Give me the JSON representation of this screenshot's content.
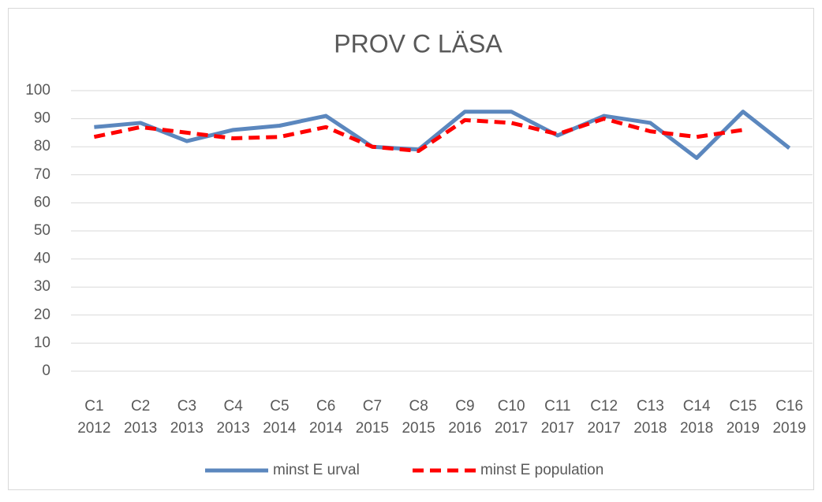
{
  "chart_data": {
    "type": "line",
    "title": "PROV C LÄSA",
    "categories": [
      [
        "C1",
        "2012"
      ],
      [
        "C2",
        "2013"
      ],
      [
        "C3",
        "2013"
      ],
      [
        "C4",
        "2013"
      ],
      [
        "C5",
        "2014"
      ],
      [
        "C6",
        "2014"
      ],
      [
        "C7",
        "2015"
      ],
      [
        "C8",
        "2015"
      ],
      [
        "C9",
        "2016"
      ],
      [
        "C10",
        "2017"
      ],
      [
        "C11",
        "2017"
      ],
      [
        "C12",
        "2017"
      ],
      [
        "C13",
        "2018"
      ],
      [
        "C14",
        "2018"
      ],
      [
        "C15",
        "2019"
      ],
      [
        "C16",
        "2019"
      ]
    ],
    "series": [
      {
        "name": "minst E urval",
        "color": "#5b87be",
        "dash": false,
        "values": [
          87,
          88.5,
          82,
          86,
          87.5,
          91,
          80,
          79,
          92.5,
          92.5,
          84,
          91,
          88.5,
          76,
          92.5,
          79.5
        ]
      },
      {
        "name": "minst E population",
        "color": "#ff0000",
        "dash": true,
        "values": [
          83.5,
          87,
          85,
          83,
          83.5,
          87,
          80,
          78.5,
          89.5,
          88.5,
          84.5,
          90,
          85.5,
          83.5,
          86,
          null
        ]
      }
    ],
    "ylim": [
      0,
      100
    ],
    "yticks": [
      0,
      10,
      20,
      30,
      40,
      50,
      60,
      70,
      80,
      90,
      100
    ],
    "grid": true
  }
}
